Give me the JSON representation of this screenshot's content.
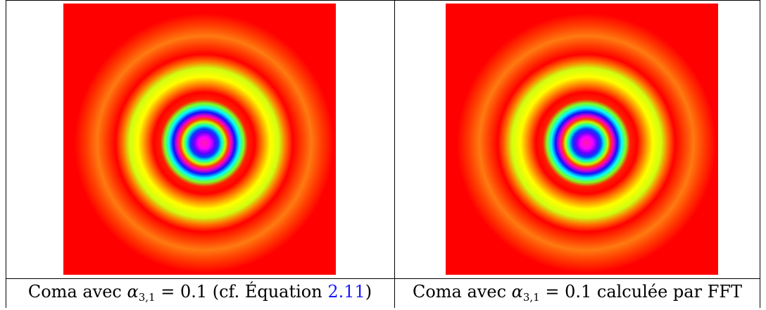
{
  "figure": {
    "panels": [
      {
        "name": "analytic",
        "caption_prefix": "Coma avec ",
        "symbol": "α",
        "subscript": "3,1",
        "equals": " = 0.1 (cf. Équation ",
        "ref": "2.11",
        "suffix": ")"
      },
      {
        "name": "fft",
        "caption_prefix": "Coma avec ",
        "symbol": "α",
        "subscript": "3,1",
        "equals": " = 0.1 calculée par FFT",
        "ref": "",
        "suffix": ""
      }
    ],
    "colors": {
      "background": "#ff0000",
      "ring_orange": "#ff6a00",
      "ring_yellow": "#ffff00",
      "ring_green": "#80ff00",
      "ring_cyan": "#00ffc0",
      "ring_blue": "#1010ff",
      "ring_magenta": "#ff00ff",
      "center_pink": "#ff2080",
      "reference_link": "#1a1aff"
    }
  }
}
